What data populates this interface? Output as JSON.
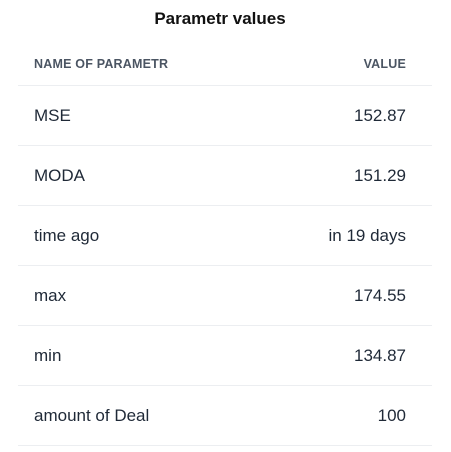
{
  "title": "Parametr values",
  "table": {
    "headers": {
      "name": "NAME OF PARAMETR",
      "value": "VALUE"
    },
    "rows": [
      {
        "name": "MSE",
        "value": "152.87"
      },
      {
        "name": "MODA",
        "value": "151.29"
      },
      {
        "name": "time ago",
        "value": "in 19 days"
      },
      {
        "name": "max",
        "value": "174.55"
      },
      {
        "name": "min",
        "value": "134.87"
      },
      {
        "name": "amount of Deal",
        "value": "100"
      }
    ]
  }
}
